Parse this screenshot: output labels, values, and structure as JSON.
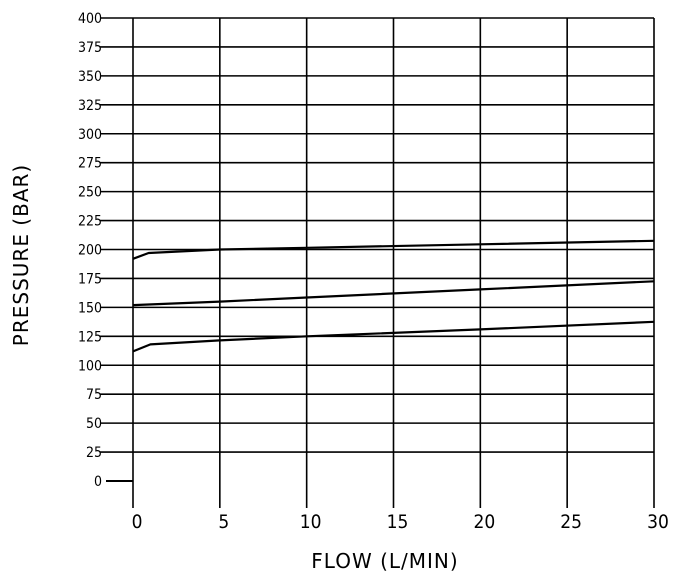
{
  "chart_data": {
    "type": "line",
    "title": "",
    "xlabel": "FLOW (L/MIN)",
    "ylabel": "PRESSURE (BAR)",
    "xlim": [
      0,
      30
    ],
    "ylim": [
      0,
      400
    ],
    "x_ticks": [
      0,
      5,
      10,
      15,
      20,
      25,
      30
    ],
    "x_tick_labels": [
      "0",
      "5",
      "10",
      "15",
      "20",
      "25",
      "30"
    ],
    "y_ticks": [
      0,
      25,
      50,
      75,
      100,
      125,
      150,
      175,
      200,
      225,
      250,
      275,
      300,
      325,
      350,
      375,
      400
    ],
    "y_tick_labels": [
      "0",
      "25",
      "50",
      "75",
      "100",
      "125",
      "150",
      "175",
      "200",
      "225",
      "250",
      "275",
      "300",
      "325",
      "350",
      "375",
      "400"
    ],
    "grid": true,
    "legend": "none",
    "line_color": "#000000",
    "series": [
      {
        "points": [
          [
            0,
            192
          ],
          [
            0.9,
            197
          ],
          [
            5,
            200
          ],
          [
            10,
            201.5
          ],
          [
            20,
            204.5
          ],
          [
            30,
            207.5
          ]
        ]
      },
      {
        "points": [
          [
            0,
            152
          ],
          [
            5,
            155
          ],
          [
            10,
            158.5
          ],
          [
            20,
            165.5
          ],
          [
            30,
            172.5
          ]
        ]
      },
      {
        "points": [
          [
            0,
            112
          ],
          [
            1,
            118
          ],
          [
            5,
            121.5
          ],
          [
            10,
            125
          ],
          [
            20,
            131
          ],
          [
            30,
            137.5
          ]
        ]
      }
    ]
  }
}
